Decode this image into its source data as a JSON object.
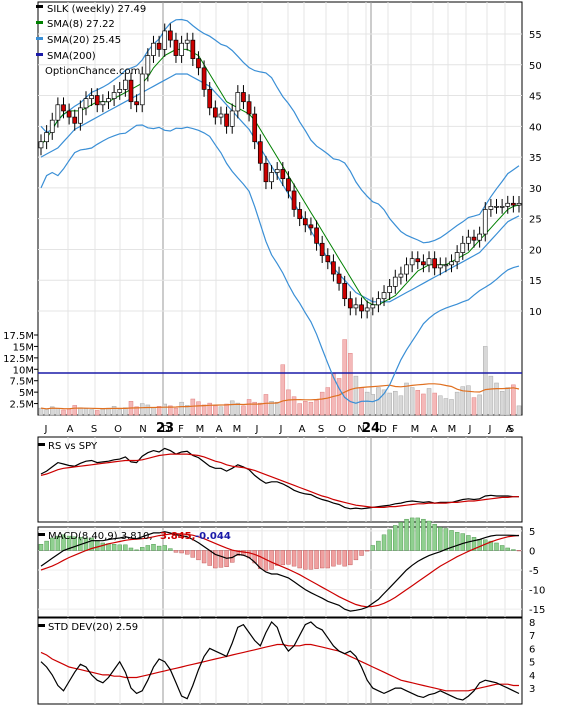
{
  "chart_data": [
    {
      "type": "candlestick",
      "panel": "price",
      "ticker": "SILK",
      "title": "SILK (weekly) 27.49",
      "watermark": "OptionChance.com",
      "legend": [
        {
          "label": "SILK (weekly) 27.49",
          "color": "#000000"
        },
        {
          "label": "SMA(8) 27.22",
          "color": "#008000"
        },
        {
          "label": "SMA(20) 25.45",
          "color": "#3a8fd6"
        },
        {
          "label": "SMA(200)",
          "color": "#1a1aa8"
        }
      ],
      "x_labels": [
        "J",
        "A",
        "S",
        "O",
        "N",
        "D",
        "23",
        "F",
        "M",
        "A",
        "M",
        "J",
        "J",
        "A",
        "S",
        "O",
        "N",
        "D",
        "24",
        "F",
        "M",
        "A",
        "M",
        "J",
        "J",
        "A",
        "S"
      ],
      "y_ticks": [
        10,
        15,
        20,
        25,
        30,
        35,
        40,
        45,
        50,
        55
      ],
      "ylim": [
        5,
        62
      ],
      "volume_ticks": [
        "2.5M",
        "5M",
        "7.5M",
        "10M",
        "12.5M",
        "15M",
        "17.5M"
      ],
      "volume_ylim": [
        0,
        17.5
      ],
      "colors": {
        "up": "#ffffff",
        "down": "#cc0000",
        "bollinger": "#3a8fd6",
        "sma8": "#008000",
        "volume_ma": "#e07020",
        "sma200": "#1a1aa8",
        "volume_bar": "#d8d8d8"
      },
      "close": [
        37.5,
        39.0,
        41.0,
        43.5,
        42.5,
        41.5,
        40.5,
        43.0,
        44.5,
        45.0,
        43.5,
        44.0,
        44.5,
        45.5,
        46.0,
        47.5,
        44.0,
        43.5,
        48.5,
        51.5,
        53.5,
        52.5,
        55.5,
        54.0,
        51.5,
        53.5,
        54.0,
        51.0,
        49.5,
        46.0,
        43.0,
        41.5,
        42.0,
        40.0,
        42.5,
        45.5,
        44.0,
        42.0,
        37.5,
        34.0,
        31.0,
        32.5,
        33.0,
        31.5,
        29.5,
        26.5,
        25.0,
        24.0,
        23.5,
        21.0,
        19.0,
        18.0,
        16.0,
        14.5,
        12.0,
        10.5,
        11.0,
        10.0,
        10.5,
        11.0,
        12.0,
        13.0,
        14.0,
        15.5,
        16.0,
        17.5,
        18.5,
        18.0,
        17.5,
        18.5,
        17.0,
        17.5,
        17.5,
        18.0,
        19.5,
        21.0,
        22.0,
        21.5,
        22.5,
        26.5,
        27.0,
        27.0,
        27.0,
        27.5,
        27.2,
        27.49
      ],
      "sma8": [
        37.0,
        38.0,
        39.5,
        41.0,
        42.0,
        42.5,
        42.5,
        42.5,
        43.0,
        43.5,
        44.0,
        44.0,
        44.0,
        44.5,
        45.0,
        45.5,
        46.0,
        46.5,
        47.0,
        48.0,
        49.5,
        50.5,
        51.5,
        52.0,
        52.5,
        52.5,
        52.5,
        52.0,
        51.5,
        50.0,
        48.5,
        47.0,
        45.5,
        44.0,
        43.5,
        43.0,
        42.5,
        42.0,
        41.0,
        39.5,
        38.0,
        36.5,
        35.0,
        33.5,
        32.0,
        30.5,
        29.0,
        27.5,
        26.0,
        24.5,
        23.0,
        21.5,
        20.0,
        18.5,
        17.0,
        15.5,
        14.0,
        12.5,
        11.5,
        11.0,
        11.0,
        11.5,
        12.0,
        12.5,
        13.5,
        14.5,
        15.5,
        16.5,
        17.0,
        17.5,
        17.5,
        17.5,
        17.5,
        18.0,
        18.5,
        19.0,
        19.5,
        20.5,
        21.5,
        22.5,
        23.5,
        24.5,
        25.5,
        26.5,
        27.0,
        27.22
      ],
      "sma20": [
        35.0,
        35.5,
        36.0,
        36.5,
        37.5,
        38.5,
        39.5,
        40.0,
        40.5,
        41.0,
        41.5,
        42.0,
        42.5,
        43.0,
        43.5,
        44.0,
        44.5,
        45.0,
        45.5,
        46.0,
        46.5,
        47.0,
        47.5,
        48.0,
        48.5,
        48.5,
        48.5,
        48.0,
        47.5,
        47.0,
        46.5,
        45.5,
        44.5,
        43.5,
        42.5,
        41.5,
        40.5,
        39.5,
        38.0,
        36.5,
        35.0,
        33.5,
        32.0,
        30.5,
        29.0,
        27.5,
        26.0,
        24.5,
        23.0,
        21.5,
        20.0,
        18.5,
        17.0,
        16.0,
        15.0,
        14.0,
        13.0,
        12.5,
        12.0,
        11.5,
        11.5,
        11.5,
        11.5,
        12.0,
        12.5,
        13.0,
        13.5,
        14.0,
        14.5,
        15.0,
        15.5,
        16.0,
        16.5,
        17.0,
        17.5,
        18.0,
        18.5,
        19.0,
        19.5,
        20.5,
        21.5,
        22.5,
        23.5,
        24.5,
        25.0,
        25.45
      ],
      "sma200_volume_level": 9.2,
      "volume": [
        1.5,
        1.2,
        1.8,
        1.4,
        1.1,
        1.3,
        2.1,
        1.6,
        1.4,
        1.2,
        1.0,
        1.3,
        1.5,
        1.9,
        1.2,
        1.6,
        3.0,
        1.8,
        2.5,
        2.2,
        1.7,
        1.9,
        2.4,
        2.0,
        1.5,
        2.8,
        2.1,
        3.5,
        2.9,
        2.2,
        2.6,
        2.0,
        1.8,
        2.4,
        3.1,
        2.6,
        2.0,
        3.4,
        2.8,
        2.6,
        4.5,
        3.0,
        2.8,
        11.0,
        5.5,
        4.0,
        2.5,
        3.0,
        2.8,
        3.2,
        5.0,
        6.0,
        9.0,
        8.0,
        16.5,
        13.5,
        8.5,
        6.0,
        5.0,
        4.5,
        6.0,
        5.5,
        4.8,
        5.2,
        4.2,
        7.0,
        6.0,
        5.4,
        4.6,
        5.8,
        4.8,
        4.2,
        3.6,
        3.4,
        5.0,
        6.2,
        6.4,
        3.8,
        4.4,
        15.0,
        8.5,
        7.0,
        5.2,
        6.0,
        6.6,
        2.0
      ]
    },
    {
      "type": "line",
      "panel": "rs",
      "title": "RS vs SPY",
      "series": [
        {
          "name": "RS vs SPY",
          "color": "#000000",
          "values": [
            0.62,
            0.66,
            0.72,
            0.78,
            0.76,
            0.74,
            0.73,
            0.77,
            0.8,
            0.81,
            0.78,
            0.79,
            0.8,
            0.82,
            0.83,
            0.86,
            0.79,
            0.78,
            0.87,
            0.92,
            0.95,
            0.93,
            0.98,
            0.95,
            0.9,
            0.93,
            0.94,
            0.88,
            0.85,
            0.79,
            0.73,
            0.7,
            0.7,
            0.66,
            0.7,
            0.75,
            0.72,
            0.68,
            0.6,
            0.54,
            0.49,
            0.51,
            0.51,
            0.48,
            0.44,
            0.39,
            0.36,
            0.34,
            0.33,
            0.29,
            0.26,
            0.24,
            0.21,
            0.19,
            0.15,
            0.13,
            0.14,
            0.13,
            0.14,
            0.15,
            0.16,
            0.17,
            0.18,
            0.2,
            0.21,
            0.23,
            0.24,
            0.23,
            0.22,
            0.23,
            0.21,
            0.22,
            0.22,
            0.22,
            0.24,
            0.26,
            0.27,
            0.26,
            0.27,
            0.31,
            0.32,
            0.31,
            0.31,
            0.31,
            0.3,
            0.3
          ]
        },
        {
          "name": "",
          "color": "#cc0000",
          "values": [
            0.6,
            0.62,
            0.65,
            0.68,
            0.7,
            0.71,
            0.72,
            0.73,
            0.74,
            0.75,
            0.76,
            0.77,
            0.78,
            0.79,
            0.8,
            0.81,
            0.81,
            0.81,
            0.82,
            0.84,
            0.86,
            0.88,
            0.89,
            0.9,
            0.9,
            0.9,
            0.9,
            0.89,
            0.88,
            0.86,
            0.83,
            0.8,
            0.78,
            0.75,
            0.73,
            0.72,
            0.71,
            0.69,
            0.67,
            0.64,
            0.61,
            0.58,
            0.55,
            0.52,
            0.49,
            0.46,
            0.43,
            0.4,
            0.37,
            0.34,
            0.31,
            0.29,
            0.26,
            0.24,
            0.22,
            0.2,
            0.18,
            0.17,
            0.16,
            0.15,
            0.15,
            0.15,
            0.16,
            0.16,
            0.17,
            0.18,
            0.19,
            0.2,
            0.2,
            0.21,
            0.21,
            0.21,
            0.21,
            0.22,
            0.22,
            0.23,
            0.24,
            0.24,
            0.25,
            0.26,
            0.27,
            0.28,
            0.29,
            0.29,
            0.3,
            0.3
          ]
        }
      ]
    },
    {
      "type": "line",
      "panel": "macd",
      "title": "MACD(8,40,9) 3.810,",
      "signal_label": "3.845,",
      "hist_label": "-0.044",
      "y_ticks": [
        5,
        0,
        -5,
        -10,
        -15
      ],
      "ylim": [
        -17,
        6
      ],
      "colors": {
        "macd": "#000000",
        "signal": "#cc0000",
        "hist_up": "#90d090",
        "hist_down": "#f0a0a0"
      },
      "macd": [
        -4.0,
        -3.0,
        -2.0,
        -1.0,
        0.0,
        0.5,
        1.0,
        1.5,
        2.0,
        2.5,
        2.5,
        2.5,
        2.8,
        3.0,
        3.2,
        3.5,
        3.2,
        3.0,
        3.5,
        4.0,
        4.5,
        4.5,
        4.8,
        4.5,
        4.0,
        3.8,
        3.5,
        2.8,
        2.0,
        1.0,
        0.0,
        -1.0,
        -1.5,
        -2.0,
        -1.8,
        -1.0,
        -1.2,
        -1.8,
        -3.0,
        -4.5,
        -5.5,
        -6.0,
        -6.0,
        -6.5,
        -7.0,
        -8.0,
        -9.0,
        -10.0,
        -10.8,
        -11.5,
        -12.2,
        -13.0,
        -13.5,
        -14.0,
        -15.0,
        -15.5,
        -15.3,
        -15.0,
        -14.5,
        -13.5,
        -12.5,
        -11.0,
        -9.5,
        -8.0,
        -6.5,
        -5.0,
        -3.8,
        -2.8,
        -2.0,
        -1.3,
        -0.8,
        -0.3,
        0.3,
        0.8,
        1.3,
        1.8,
        2.2,
        2.5,
        2.8,
        3.3,
        3.7,
        3.9,
        3.9,
        3.9,
        3.85,
        3.81
      ],
      "signal": [
        -5.0,
        -4.5,
        -4.0,
        -3.3,
        -2.5,
        -1.8,
        -1.2,
        -0.6,
        0.0,
        0.5,
        0.9,
        1.3,
        1.7,
        2.0,
        2.3,
        2.6,
        2.8,
        2.9,
        3.0,
        3.2,
        3.5,
        3.8,
        4.0,
        4.2,
        4.3,
        4.2,
        4.1,
        3.9,
        3.5,
        3.0,
        2.4,
        1.8,
        1.2,
        0.6,
        0.1,
        -0.2,
        -0.4,
        -0.6,
        -1.0,
        -1.6,
        -2.3,
        -3.0,
        -3.6,
        -4.2,
        -4.8,
        -5.5,
        -6.2,
        -7.0,
        -7.8,
        -8.6,
        -9.4,
        -10.2,
        -11.0,
        -11.8,
        -12.5,
        -13.2,
        -13.8,
        -14.2,
        -14.4,
        -14.3,
        -14.0,
        -13.5,
        -12.8,
        -12.0,
        -11.0,
        -10.0,
        -9.0,
        -8.0,
        -7.0,
        -6.0,
        -5.0,
        -4.0,
        -3.2,
        -2.4,
        -1.6,
        -0.9,
        -0.2,
        0.4,
        1.0,
        1.6,
        2.2,
        2.7,
        3.1,
        3.5,
        3.7,
        3.845
      ]
    },
    {
      "type": "line",
      "panel": "stddev",
      "title": "STD DEV(20) 2.59",
      "y_ticks": [
        8,
        7,
        6,
        5,
        4,
        3
      ],
      "ylim": [
        1.8,
        8.3
      ],
      "series": [
        {
          "name": "STD DEV(20) 2.59",
          "color": "#000000",
          "values": [
            5.0,
            4.6,
            4.0,
            3.2,
            2.8,
            3.5,
            4.2,
            4.8,
            4.6,
            4.0,
            3.6,
            3.4,
            3.8,
            4.4,
            5.0,
            4.2,
            3.0,
            2.6,
            2.8,
            3.6,
            4.6,
            5.2,
            5.0,
            4.4,
            3.4,
            2.4,
            2.2,
            3.2,
            4.4,
            5.4,
            6.0,
            5.8,
            5.6,
            5.4,
            6.4,
            7.6,
            7.8,
            7.2,
            6.6,
            6.2,
            7.2,
            8.0,
            7.6,
            6.4,
            5.8,
            6.2,
            7.0,
            7.8,
            8.0,
            7.6,
            7.4,
            6.8,
            6.2,
            5.8,
            5.6,
            5.8,
            5.4,
            4.6,
            3.6,
            3.0,
            2.8,
            2.6,
            2.8,
            3.0,
            3.0,
            2.8,
            2.6,
            2.4,
            2.3,
            2.5,
            2.6,
            2.8,
            2.6,
            2.4,
            2.2,
            2.1,
            2.4,
            2.8,
            3.4,
            3.6,
            3.5,
            3.4,
            3.2,
            3.0,
            2.8,
            2.59
          ]
        },
        {
          "name": "",
          "color": "#cc0000",
          "values": [
            5.7,
            5.5,
            5.2,
            5.0,
            4.8,
            4.6,
            4.5,
            4.4,
            4.3,
            4.2,
            4.1,
            4.0,
            4.0,
            3.9,
            3.9,
            3.8,
            3.8,
            3.8,
            3.9,
            4.0,
            4.1,
            4.2,
            4.3,
            4.4,
            4.5,
            4.6,
            4.7,
            4.8,
            4.9,
            5.0,
            5.1,
            5.2,
            5.3,
            5.4,
            5.5,
            5.6,
            5.7,
            5.8,
            5.9,
            6.0,
            6.1,
            6.2,
            6.3,
            6.3,
            6.2,
            6.2,
            6.2,
            6.3,
            6.3,
            6.2,
            6.1,
            6.0,
            5.9,
            5.8,
            5.6,
            5.4,
            5.2,
            5.0,
            4.8,
            4.6,
            4.4,
            4.2,
            4.0,
            3.8,
            3.6,
            3.5,
            3.4,
            3.3,
            3.2,
            3.1,
            3.0,
            2.9,
            2.8,
            2.8,
            2.8,
            2.8,
            2.8,
            2.9,
            3.0,
            3.1,
            3.2,
            3.3,
            3.3,
            3.3,
            3.2,
            3.2
          ]
        }
      ]
    }
  ]
}
